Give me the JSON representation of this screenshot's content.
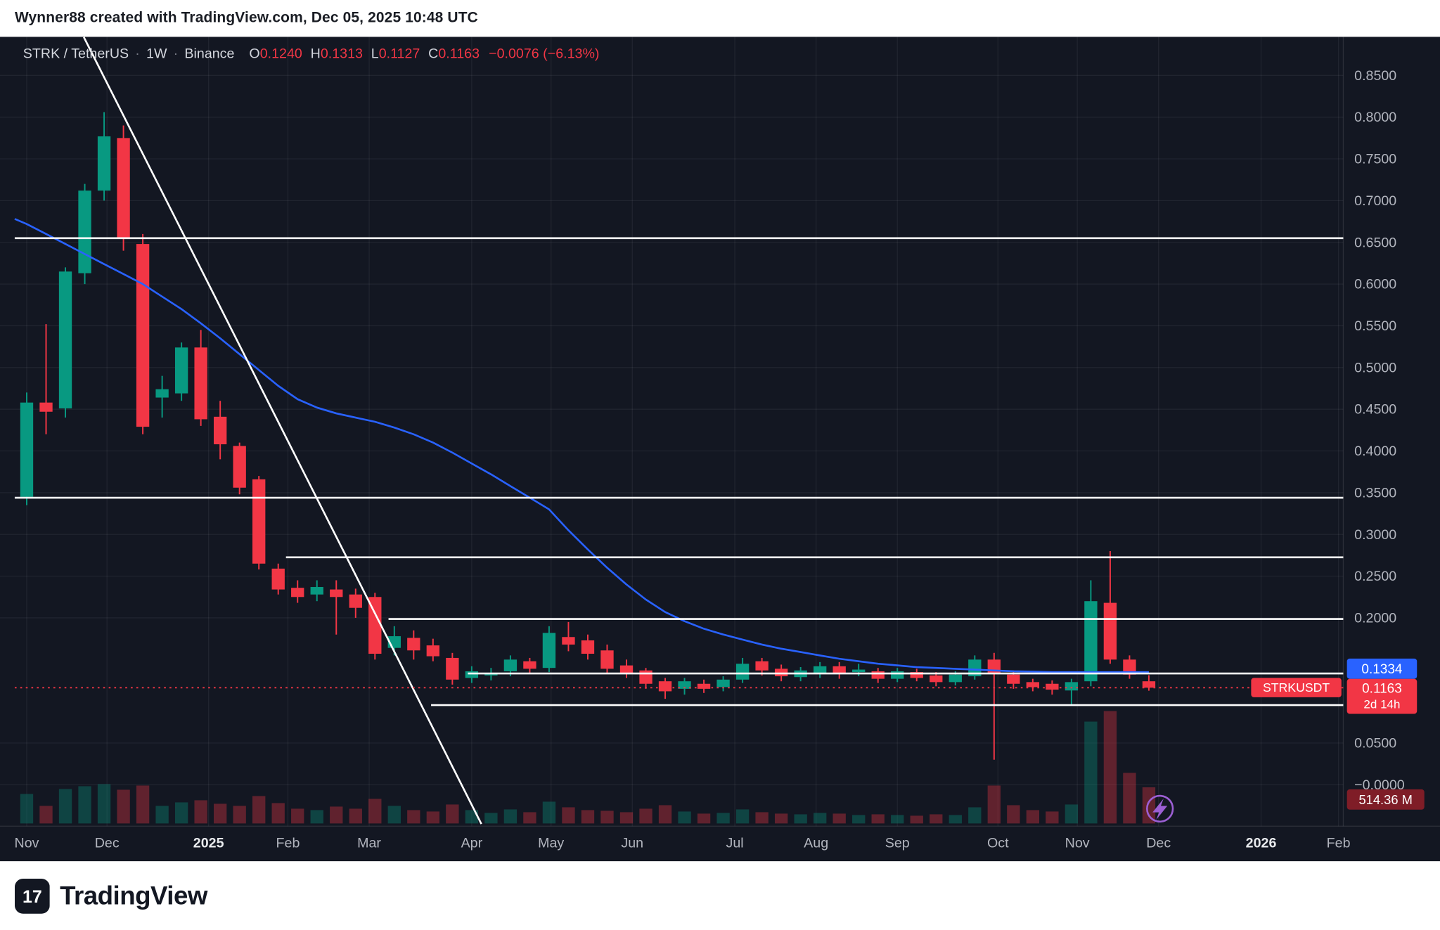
{
  "header": {
    "attribution": "Wynner88 created with TradingView.com, Dec 05, 2025 10:48 UTC"
  },
  "legend": {
    "symbol": "STRK / TetherUS",
    "separator": "·",
    "interval": "1W",
    "exchange": "Binance",
    "open_label": "O",
    "open_value": "0.1240",
    "high_label": "H",
    "high_value": "0.1313",
    "low_label": "L",
    "low_value": "0.1127",
    "close_label": "C",
    "close_value": "0.1163",
    "change_value": "−0.0076 (−6.13%)"
  },
  "price_axis": {
    "line_label": "0.1334",
    "last_price": "0.1163",
    "countdown": "2d 14h",
    "symbol_tag": "STRKUSDT",
    "volume_label": "514.36 M"
  },
  "footer": {
    "brand": "TradingView",
    "logo_glyph": "17"
  },
  "colors": {
    "bg": "#131722",
    "up": "#089981",
    "down": "#f23645",
    "vol_up": "rgba(8,153,129,0.35)",
    "vol_down": "rgba(242,54,69,0.35)",
    "ma": "#2962ff",
    "accent_blue": "#2962ff",
    "accent_red": "#f23645",
    "volume_tag_bg": "#7f1d27",
    "line": "#ffffff",
    "grid": "rgba(255,255,255,0.06)",
    "axis_line": "rgba(255,255,255,0.10)",
    "axis_text": "#b2b5be",
    "year_text": "#e8eaed",
    "bolt": "#9c5fd4"
  },
  "chart_data": {
    "type": "candlestick",
    "title": "STRK / TetherUS · 1W · Binance",
    "x_unit": "week",
    "ylim": [
      -0.02,
      0.9
    ],
    "grid": true,
    "last_price_line": 0.1163,
    "volume_axis_value_m": 514.36,
    "volume_scale_max_m": 1600,
    "price_ticks": [
      {
        "label": "0.8500",
        "price": 0.85
      },
      {
        "label": "0.8000",
        "price": 0.8
      },
      {
        "label": "0.7500",
        "price": 0.75
      },
      {
        "label": "0.7000",
        "price": 0.7
      },
      {
        "label": "0.6500",
        "price": 0.65
      },
      {
        "label": "0.6000",
        "price": 0.6
      },
      {
        "label": "0.5500",
        "price": 0.55
      },
      {
        "label": "0.5000",
        "price": 0.5
      },
      {
        "label": "0.4500",
        "price": 0.45
      },
      {
        "label": "0.4000",
        "price": 0.4
      },
      {
        "label": "0.3500",
        "price": 0.35
      },
      {
        "label": "0.3000",
        "price": 0.3
      },
      {
        "label": "0.2500",
        "price": 0.25
      },
      {
        "label": "0.2000",
        "price": 0.2
      },
      {
        "label": "0.0500",
        "price": 0.05
      },
      {
        "label": "−0.0000",
        "price": 0.0
      }
    ],
    "x_ticks": [
      {
        "label": "Nov",
        "week": 0,
        "year": false
      },
      {
        "label": "Dec",
        "week": 4.15,
        "year": false
      },
      {
        "label": "2025",
        "week": 9.4,
        "year": true
      },
      {
        "label": "Feb",
        "week": 13.5,
        "year": false
      },
      {
        "label": "Mar",
        "week": 17.7,
        "year": false
      },
      {
        "label": "Apr",
        "week": 23.0,
        "year": false
      },
      {
        "label": "May",
        "week": 27.1,
        "year": false
      },
      {
        "label": "Jun",
        "week": 31.3,
        "year": false
      },
      {
        "label": "Jul",
        "week": 36.6,
        "year": false
      },
      {
        "label": "Aug",
        "week": 40.8,
        "year": false
      },
      {
        "label": "Sep",
        "week": 45.0,
        "year": false
      },
      {
        "label": "Oct",
        "week": 50.2,
        "year": false
      },
      {
        "label": "Nov",
        "week": 54.3,
        "year": false
      },
      {
        "label": "Dec",
        "week": 58.5,
        "year": false
      },
      {
        "label": "2026",
        "week": 63.8,
        "year": true
      },
      {
        "label": "Feb",
        "week": 67.8,
        "year": false
      }
    ],
    "rays": [
      {
        "price": 0.655,
        "from_week": -0.62
      },
      {
        "price": 0.344,
        "from_week": -0.62
      },
      {
        "price": 0.2726,
        "from_week": 13.4
      },
      {
        "price": 0.1986,
        "from_week": 18.7
      },
      {
        "price": 0.1334,
        "from_week": 22.8
      },
      {
        "price": 0.0955,
        "from_week": 20.9
      }
    ],
    "trendline": {
      "from": {
        "week": 2.95,
        "price": 0.896
      },
      "to": {
        "week": 23.5,
        "price": -0.047
      }
    },
    "candles_ohlcv": [
      [
        0.345,
        0.47,
        0.335,
        0.458,
        420
      ],
      [
        0.458,
        0.552,
        0.42,
        0.447,
        250
      ],
      [
        0.451,
        0.62,
        0.44,
        0.615,
        490
      ],
      [
        0.613,
        0.72,
        0.6,
        0.712,
        530
      ],
      [
        0.712,
        0.806,
        0.7,
        0.777,
        560
      ],
      [
        0.775,
        0.79,
        0.64,
        0.655,
        480
      ],
      [
        0.648,
        0.66,
        0.42,
        0.429,
        540
      ],
      [
        0.464,
        0.49,
        0.44,
        0.474,
        250
      ],
      [
        0.469,
        0.53,
        0.46,
        0.524,
        300
      ],
      [
        0.524,
        0.545,
        0.43,
        0.438,
        330
      ],
      [
        0.441,
        0.46,
        0.39,
        0.408,
        280
      ],
      [
        0.406,
        0.41,
        0.348,
        0.356,
        250
      ],
      [
        0.366,
        0.37,
        0.258,
        0.265,
        390
      ],
      [
        0.259,
        0.265,
        0.228,
        0.234,
        290
      ],
      [
        0.236,
        0.245,
        0.218,
        0.225,
        210
      ],
      [
        0.228,
        0.245,
        0.22,
        0.237,
        190
      ],
      [
        0.234,
        0.245,
        0.18,
        0.225,
        240
      ],
      [
        0.228,
        0.235,
        0.2,
        0.212,
        210
      ],
      [
        0.225,
        0.23,
        0.15,
        0.157,
        350
      ],
      [
        0.164,
        0.19,
        0.155,
        0.178,
        250
      ],
      [
        0.176,
        0.185,
        0.15,
        0.161,
        190
      ],
      [
        0.167,
        0.175,
        0.148,
        0.154,
        170
      ],
      [
        0.152,
        0.158,
        0.12,
        0.126,
        270
      ],
      [
        0.128,
        0.142,
        0.122,
        0.136,
        190
      ],
      [
        0.131,
        0.14,
        0.125,
        0.134,
        150
      ],
      [
        0.136,
        0.155,
        0.13,
        0.15,
        200
      ],
      [
        0.148,
        0.152,
        0.133,
        0.139,
        160
      ],
      [
        0.14,
        0.19,
        0.135,
        0.182,
        310
      ],
      [
        0.177,
        0.195,
        0.16,
        0.168,
        230
      ],
      [
        0.173,
        0.18,
        0.15,
        0.157,
        190
      ],
      [
        0.161,
        0.168,
        0.133,
        0.139,
        180
      ],
      [
        0.143,
        0.15,
        0.128,
        0.134,
        160
      ],
      [
        0.137,
        0.14,
        0.115,
        0.121,
        210
      ],
      [
        0.124,
        0.128,
        0.103,
        0.112,
        260
      ],
      [
        0.115,
        0.128,
        0.108,
        0.124,
        170
      ],
      [
        0.121,
        0.126,
        0.11,
        0.115,
        140
      ],
      [
        0.117,
        0.13,
        0.112,
        0.126,
        150
      ],
      [
        0.126,
        0.152,
        0.122,
        0.145,
        200
      ],
      [
        0.148,
        0.152,
        0.131,
        0.137,
        160
      ],
      [
        0.139,
        0.144,
        0.124,
        0.13,
        140
      ],
      [
        0.129,
        0.141,
        0.124,
        0.137,
        130
      ],
      [
        0.133,
        0.147,
        0.128,
        0.142,
        150
      ],
      [
        0.142,
        0.147,
        0.127,
        0.133,
        140
      ],
      [
        0.135,
        0.145,
        0.13,
        0.138,
        120
      ],
      [
        0.136,
        0.14,
        0.122,
        0.127,
        130
      ],
      [
        0.127,
        0.14,
        0.123,
        0.136,
        120
      ],
      [
        0.135,
        0.139,
        0.124,
        0.128,
        110
      ],
      [
        0.131,
        0.135,
        0.118,
        0.123,
        130
      ],
      [
        0.123,
        0.136,
        0.119,
        0.132,
        120
      ],
      [
        0.13,
        0.155,
        0.126,
        0.15,
        230
      ],
      [
        0.15,
        0.158,
        0.03,
        0.134,
        540
      ],
      [
        0.132,
        0.137,
        0.115,
        0.121,
        260
      ],
      [
        0.123,
        0.127,
        0.112,
        0.117,
        190
      ],
      [
        0.121,
        0.125,
        0.108,
        0.114,
        170
      ],
      [
        0.113,
        0.127,
        0.096,
        0.123,
        270
      ],
      [
        0.124,
        0.245,
        0.118,
        0.22,
        1450
      ],
      [
        0.218,
        0.28,
        0.145,
        0.15,
        1600
      ],
      [
        0.15,
        0.155,
        0.127,
        0.132,
        720
      ],
      [
        0.124,
        0.1313,
        0.1127,
        0.1163,
        514.36
      ]
    ],
    "ma": [
      0.672,
      0.66,
      0.648,
      0.636,
      0.624,
      0.612,
      0.6,
      0.585,
      0.57,
      0.553,
      0.535,
      0.516,
      0.497,
      0.478,
      0.462,
      0.452,
      0.445,
      0.44,
      0.435,
      0.428,
      0.42,
      0.41,
      0.398,
      0.385,
      0.372,
      0.358,
      0.344,
      0.33,
      0.305,
      0.282,
      0.26,
      0.24,
      0.222,
      0.207,
      0.196,
      0.187,
      0.18,
      0.174,
      0.168,
      0.163,
      0.159,
      0.155,
      0.151,
      0.148,
      0.145,
      0.143,
      0.141,
      0.14,
      0.139,
      0.138,
      0.137,
      0.136,
      0.1355,
      0.135,
      0.135,
      0.135,
      0.135,
      0.135,
      0.135
    ]
  }
}
